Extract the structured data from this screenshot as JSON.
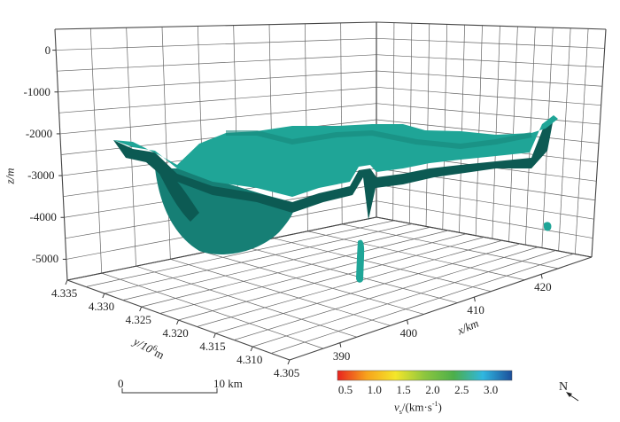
{
  "chart_data": {
    "type": "surface",
    "xlabel": "x/km",
    "ylabel_main": "y/10",
    "ylabel_sup": "6",
    "ylabel_unit": "m",
    "zlabel": "z/m",
    "xlim": [
      382.5,
      427.5
    ],
    "ylim": [
      4.305,
      4.335
    ],
    "zlim": [
      -5500,
      500
    ],
    "x_ticks": [
      390,
      400,
      410,
      420
    ],
    "x_tick_labels": [
      "390",
      "400",
      "410",
      "420"
    ],
    "y_ticks": [
      4.335,
      4.33,
      4.325,
      4.32,
      4.315,
      4.31,
      4.305
    ],
    "y_tick_labels": [
      "4.335",
      "4.330",
      "4.325",
      "4.320",
      "4.315",
      "4.310",
      "4.305"
    ],
    "z_ticks": [
      0,
      -1000,
      -2000,
      -3000,
      -4000,
      -5000
    ],
    "z_tick_labels": [
      "0",
      "-1000",
      "-2000",
      "-3000",
      "-4000",
      "-5000"
    ],
    "grid": true,
    "surface_color": "#1fa597",
    "surface_shadow_color": "#0c5a53",
    "colorbar": {
      "label_main": "v",
      "label_sub": "s",
      "label_unit": "/(km·s",
      "label_sup": "-1",
      "label_close": ")",
      "range": [
        0.35,
        3.35
      ],
      "ticks": [
        0.5,
        1.0,
        1.5,
        2.0,
        2.5,
        3.0
      ],
      "tick_labels": [
        "0.5",
        "1.0",
        "1.5",
        "2.0",
        "2.5",
        "3.0"
      ],
      "colors": [
        "#e8231f",
        "#f7a21c",
        "#f4e62a",
        "#8dc63f",
        "#4caf4a",
        "#2fb7e0",
        "#1c4e9a"
      ]
    },
    "scale_bar": {
      "start_label": "0",
      "end_label": "10 km"
    },
    "north_label": "N"
  }
}
